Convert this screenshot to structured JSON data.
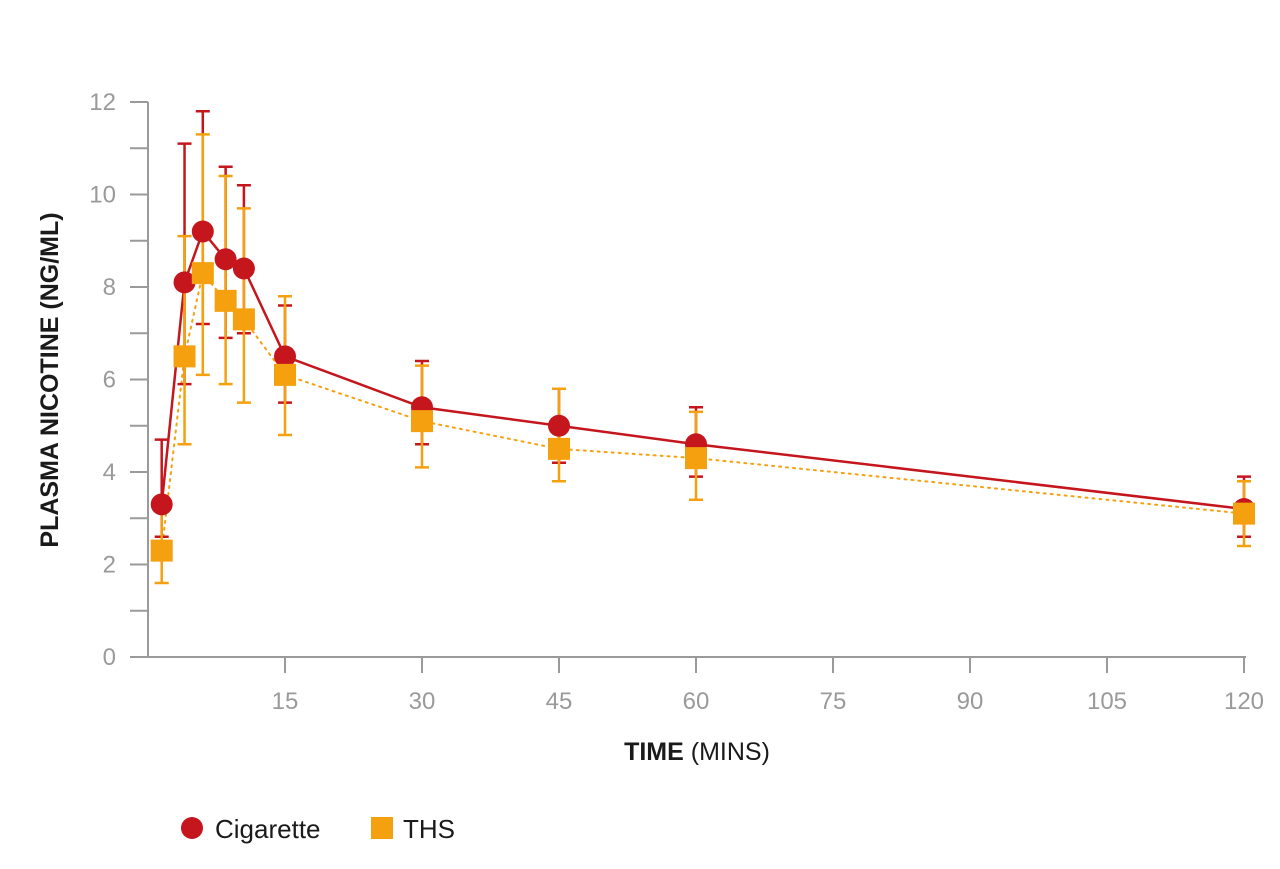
{
  "chart_data": {
    "type": "line",
    "xlabel_bold": "TIME",
    "xlabel_rest": " (MINS)",
    "ylabel": "PLASMA NICOTINE (NG/ML)",
    "xlim": [
      0,
      120
    ],
    "ylim": [
      0,
      12
    ],
    "x_tick_labels": [
      "15",
      "30",
      "45",
      "60",
      "75",
      "90",
      "105",
      "120"
    ],
    "x_ticks": [
      15,
      30,
      45,
      60,
      75,
      90,
      105,
      120
    ],
    "y_tick_labels": [
      "0",
      "2",
      "4",
      "6",
      "8",
      "10",
      "12"
    ],
    "y_ticks": [
      0,
      2,
      4,
      6,
      8,
      10,
      12
    ],
    "y_minor_ticks": [
      1,
      3,
      5,
      7,
      9,
      11
    ],
    "grid": false,
    "legend_position": "bottom-left",
    "series": [
      {
        "name": "Cigarette",
        "marker": "circle",
        "line": "solid",
        "color": "#c4161c",
        "x": [
          1.5,
          4,
          6,
          8.5,
          10.5,
          15,
          30,
          45,
          60,
          120
        ],
        "y": [
          3.3,
          8.1,
          9.2,
          8.6,
          8.4,
          6.5,
          5.4,
          5.0,
          4.6,
          3.2
        ],
        "err_low": [
          2.6,
          5.9,
          7.2,
          6.9,
          7.0,
          5.5,
          4.6,
          4.2,
          3.9,
          2.6
        ],
        "err_high": [
          4.7,
          11.1,
          11.8,
          10.6,
          10.2,
          7.6,
          6.4,
          5.8,
          5.4,
          3.9
        ]
      },
      {
        "name": "THS",
        "marker": "square",
        "line": "dotted",
        "color": "#f5a00f",
        "x": [
          1.5,
          4,
          6,
          8.5,
          10.5,
          15,
          30,
          45,
          60,
          120
        ],
        "y": [
          2.3,
          6.5,
          8.3,
          7.7,
          7.3,
          6.1,
          5.1,
          4.5,
          4.3,
          3.1
        ],
        "err_low": [
          1.6,
          4.6,
          6.1,
          5.9,
          5.5,
          4.8,
          4.1,
          3.8,
          3.4,
          2.4
        ],
        "err_high": [
          3.3,
          9.1,
          11.3,
          10.4,
          9.7,
          7.8,
          6.3,
          5.8,
          5.3,
          3.8
        ]
      }
    ]
  }
}
